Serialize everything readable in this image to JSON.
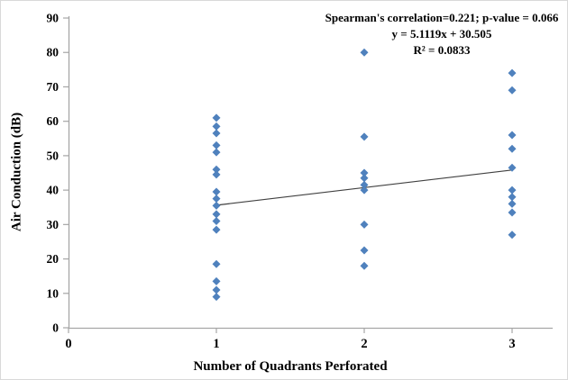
{
  "chart_data": {
    "type": "scatter",
    "title": "",
    "xlabel": "Number of Quadrants Perforated",
    "ylabel": "Air Conduction (dB)",
    "xlim": [
      0,
      3
    ],
    "ylim": [
      0,
      90
    ],
    "x_ticks": [
      0,
      1,
      2,
      3
    ],
    "y_ticks": [
      0,
      10,
      20,
      30,
      40,
      50,
      60,
      70,
      80,
      90
    ],
    "grid": false,
    "legend": "none",
    "annotation": {
      "line1": "Spearman's correlation=0.221; p-value = 0.066",
      "line2": "y = 5.1119x + 30.505",
      "line3": "R² = 0.0833"
    },
    "marker": {
      "shape": "diamond",
      "color": "#4F81BD",
      "size": 9
    },
    "axis_color": "#a6a6a6",
    "trendline": {
      "slope": 5.1119,
      "intercept": 30.505,
      "x_start": 1,
      "x_end": 3,
      "color": "#404040",
      "r_squared": 0.0833
    },
    "series": [
      {
        "name": "Air Conduction",
        "points": [
          [
            1,
            61
          ],
          [
            1,
            58.5
          ],
          [
            1,
            56.5
          ],
          [
            1,
            53
          ],
          [
            1,
            51
          ],
          [
            1,
            46
          ],
          [
            1,
            44.5
          ],
          [
            1,
            39.5
          ],
          [
            1,
            37.5
          ],
          [
            1,
            35.5
          ],
          [
            1,
            33
          ],
          [
            1,
            31
          ],
          [
            1,
            28.5
          ],
          [
            1,
            18.5
          ],
          [
            1,
            13.5
          ],
          [
            1,
            11
          ],
          [
            1,
            9
          ],
          [
            2,
            80
          ],
          [
            2,
            55.5
          ],
          [
            2,
            45
          ],
          [
            2,
            43.5
          ],
          [
            2,
            41.5
          ],
          [
            2,
            40
          ],
          [
            2,
            30
          ],
          [
            2,
            22.5
          ],
          [
            2,
            18
          ],
          [
            3,
            74
          ],
          [
            3,
            69
          ],
          [
            3,
            56
          ],
          [
            3,
            52
          ],
          [
            3,
            46.5
          ],
          [
            3,
            40
          ],
          [
            3,
            38
          ],
          [
            3,
            36
          ],
          [
            3,
            33.5
          ],
          [
            3,
            27
          ]
        ]
      }
    ]
  }
}
